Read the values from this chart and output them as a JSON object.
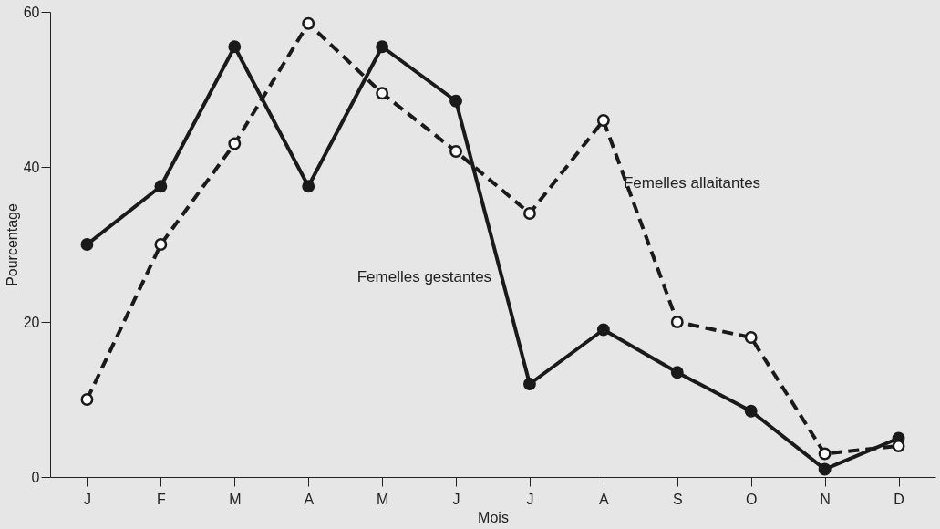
{
  "chart_data": {
    "type": "line",
    "xlabel": "Mois",
    "ylabel": "Pourcentage",
    "categories": [
      "J",
      "F",
      "M",
      "A",
      "M",
      "J",
      "J",
      "A",
      "S",
      "O",
      "N",
      "D"
    ],
    "series": [
      {
        "name": "Femelles gestantes",
        "color": "#1a1a1a",
        "line_style": "solid",
        "marker": "circle",
        "values": [
          30,
          37.5,
          55.5,
          37.5,
          55.5,
          48.5,
          12,
          19,
          13.5,
          8.5,
          1,
          5
        ]
      },
      {
        "name": "Femelles allaitantes",
        "color": "#1a1a1a",
        "line_style": "dashed",
        "marker": "circle",
        "values": [
          10,
          30,
          43,
          58.5,
          49.5,
          42,
          34,
          46,
          20,
          18,
          3,
          4
        ]
      }
    ],
    "ylim": [
      0,
      60
    ],
    "yticks": [
      0,
      20,
      40,
      60
    ],
    "grid": false,
    "legend": false
  }
}
